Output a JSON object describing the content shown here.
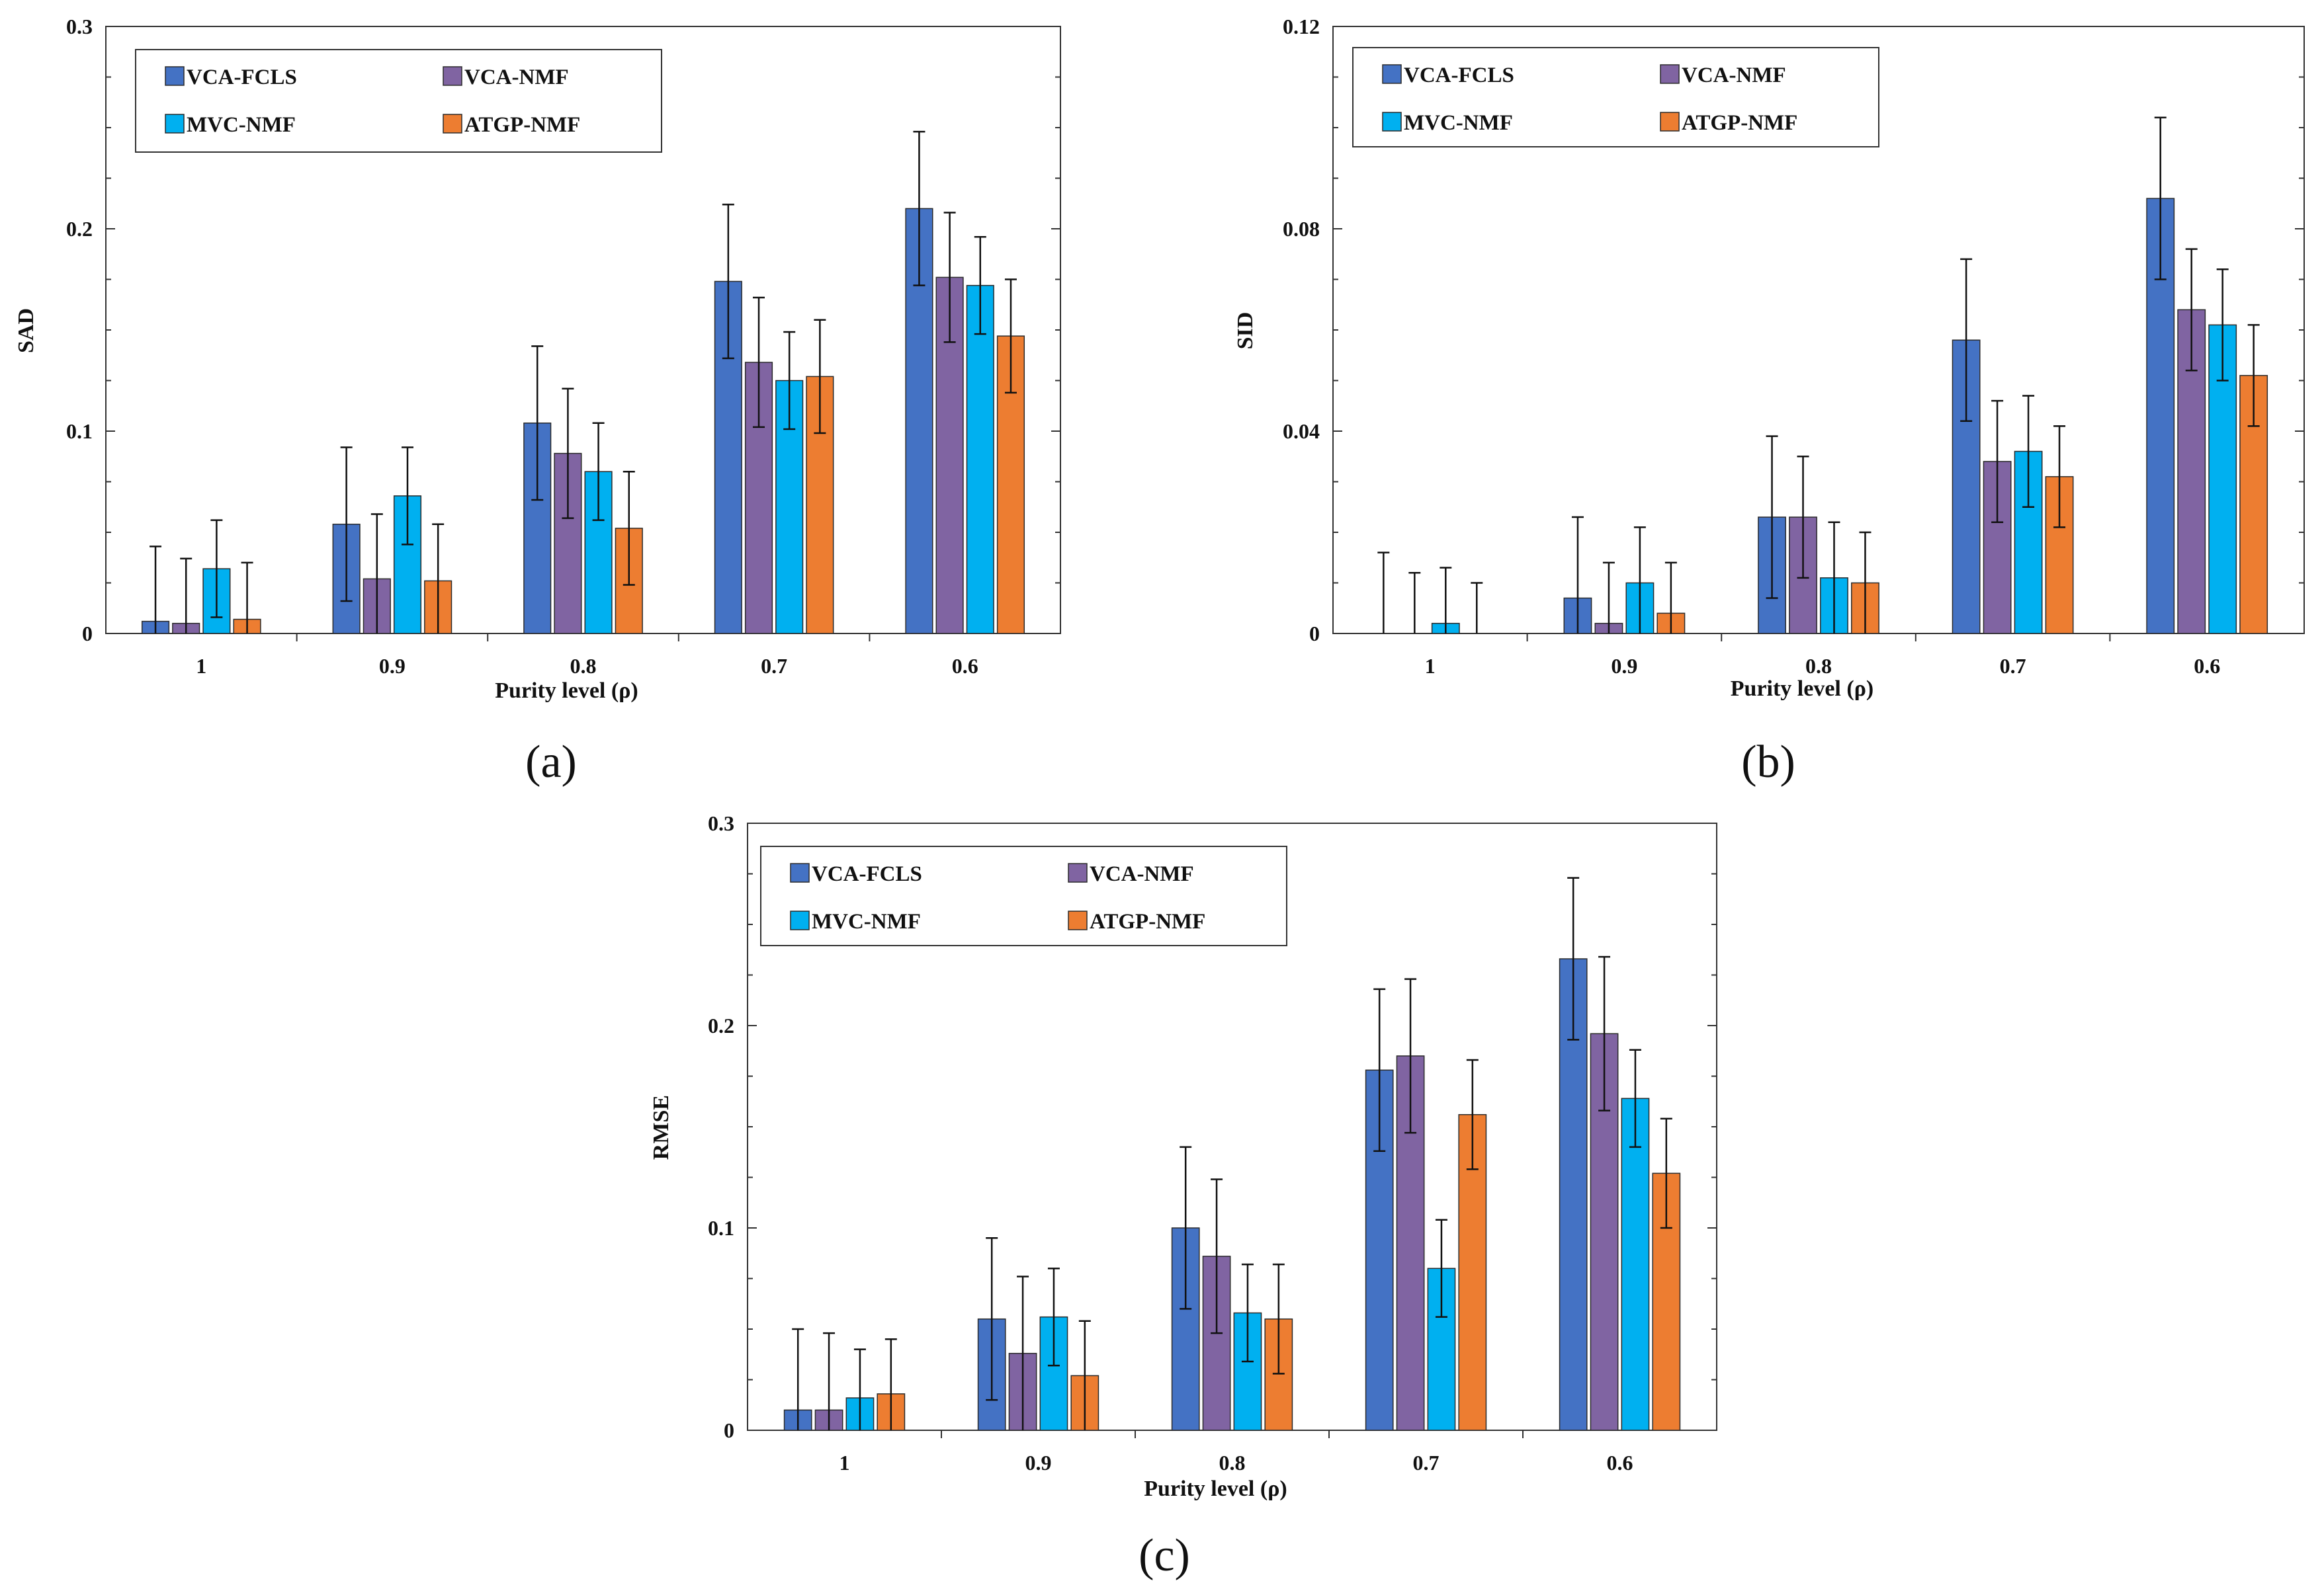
{
  "chart_data": [
    {
      "type": "bar",
      "panel_label": "(a)",
      "ylabel": "SAD",
      "xlabel": "Purity level (ρ)",
      "ylim": [
        0,
        0.3
      ],
      "yticks": [
        "0",
        "0.1",
        "0.2",
        "0.3"
      ],
      "ytick_values": [
        0,
        0.1,
        0.2,
        0.3
      ],
      "categories": [
        "1",
        "0.9",
        "0.8",
        "0.7",
        "0.6"
      ],
      "legend_position": "top-left",
      "series": [
        {
          "name": "VCA-FCLS",
          "color": "#4472C4",
          "values": [
            0.006,
            0.054,
            0.104,
            0.174,
            0.21
          ],
          "errors": [
            0.037,
            0.038,
            0.038,
            0.038,
            0.038
          ]
        },
        {
          "name": "VCA-NMF",
          "color": "#8064A2",
          "values": [
            0.005,
            0.027,
            0.089,
            0.134,
            0.176
          ],
          "errors": [
            0.032,
            0.032,
            0.032,
            0.032,
            0.032
          ]
        },
        {
          "name": "MVC-NMF",
          "color": "#00B0F0",
          "values": [
            0.032,
            0.068,
            0.08,
            0.125,
            0.172
          ],
          "errors": [
            0.024,
            0.024,
            0.024,
            0.024,
            0.024
          ]
        },
        {
          "name": "ATGP-NMF",
          "color": "#ED7D31",
          "values": [
            0.007,
            0.026,
            0.052,
            0.127,
            0.147
          ],
          "errors": [
            0.028,
            0.028,
            0.028,
            0.028,
            0.028
          ]
        }
      ]
    },
    {
      "type": "bar",
      "panel_label": "(b)",
      "ylabel": "SID",
      "xlabel": "Purity level (ρ)",
      "ylim": [
        0,
        0.12
      ],
      "yticks": [
        "0",
        "0.04",
        "0.08",
        "0.12"
      ],
      "ytick_values": [
        0,
        0.04,
        0.08,
        0.12
      ],
      "categories": [
        "1",
        "0.9",
        "0.8",
        "0.7",
        "0.6"
      ],
      "legend_position": "top-left",
      "series": [
        {
          "name": "VCA-FCLS",
          "color": "#4472C4",
          "values": [
            0.0,
            0.007,
            0.023,
            0.058,
            0.086
          ],
          "errors": [
            0.016,
            0.016,
            0.016,
            0.016,
            0.016
          ]
        },
        {
          "name": "VCA-NMF",
          "color": "#8064A2",
          "values": [
            0.0,
            0.002,
            0.023,
            0.034,
            0.064
          ],
          "errors": [
            0.012,
            0.012,
            0.012,
            0.012,
            0.012
          ]
        },
        {
          "name": "MVC-NMF",
          "color": "#00B0F0",
          "values": [
            0.002,
            0.01,
            0.011,
            0.036,
            0.061
          ],
          "errors": [
            0.011,
            0.011,
            0.011,
            0.011,
            0.011
          ]
        },
        {
          "name": "ATGP-NMF",
          "color": "#ED7D31",
          "values": [
            0.0,
            0.004,
            0.01,
            0.031,
            0.051
          ],
          "errors": [
            0.01,
            0.01,
            0.01,
            0.01,
            0.01
          ]
        }
      ]
    },
    {
      "type": "bar",
      "panel_label": "(c)",
      "ylabel": "RMSE",
      "xlabel": "Purity level (ρ)",
      "ylim": [
        0,
        0.3
      ],
      "yticks": [
        "0",
        "0.1",
        "0.2",
        "0.3"
      ],
      "ytick_values": [
        0,
        0.1,
        0.2,
        0.3
      ],
      "categories": [
        "1",
        "0.9",
        "0.8",
        "0.7",
        "0.6"
      ],
      "legend_position": "top-left",
      "series": [
        {
          "name": "VCA-FCLS",
          "color": "#4472C4",
          "values": [
            0.01,
            0.055,
            0.1,
            0.178,
            0.233
          ],
          "errors": [
            0.04,
            0.04,
            0.04,
            0.04,
            0.04
          ]
        },
        {
          "name": "VCA-NMF",
          "color": "#8064A2",
          "values": [
            0.01,
            0.038,
            0.086,
            0.185,
            0.196
          ],
          "errors": [
            0.038,
            0.038,
            0.038,
            0.038,
            0.038
          ]
        },
        {
          "name": "MVC-NMF",
          "color": "#00B0F0",
          "values": [
            0.016,
            0.056,
            0.058,
            0.08,
            0.164
          ],
          "errors": [
            0.024,
            0.024,
            0.024,
            0.024,
            0.024
          ]
        },
        {
          "name": "ATGP-NMF",
          "color": "#ED7D31",
          "values": [
            0.018,
            0.027,
            0.055,
            0.156,
            0.127
          ],
          "errors": [
            0.027,
            0.027,
            0.027,
            0.027,
            0.027
          ]
        }
      ]
    }
  ]
}
